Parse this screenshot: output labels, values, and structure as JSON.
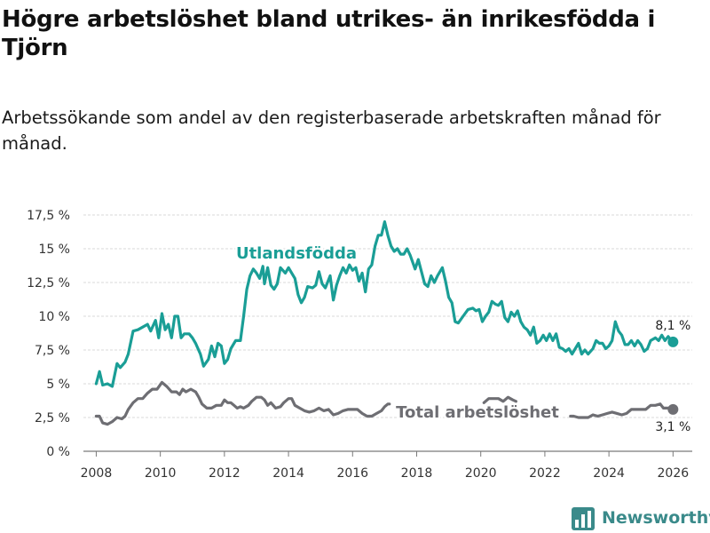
{
  "title": "Högre arbetslöshet bland utrikes- än inrikesfödda i Tjörn",
  "subtitle": "Arbetssökande som andel av den registerbaserade arbetskraften månad för månad.",
  "brand": "Newsworthy",
  "chart_data": {
    "type": "line",
    "title": "Högre arbetslöshet bland utrikes- än inrikesfödda i Tjörn",
    "xlabel": "",
    "ylabel": "",
    "xlim": [
      2007.6,
      2026.6
    ],
    "ylim": [
      0,
      17.5
    ],
    "y_ticks": [
      0,
      2.5,
      5,
      7.5,
      10,
      12.5,
      15,
      17.5
    ],
    "y_tick_labels": [
      "0 %",
      "2,5 %",
      "5 %",
      "7,5 %",
      "10 %",
      "12,5 %",
      "15 %",
      "17,5 %"
    ],
    "x_ticks": [
      2008,
      2010,
      2012,
      2014,
      2016,
      2018,
      2020,
      2022,
      2024,
      2026
    ],
    "x_tick_labels": [
      "2008",
      "2010",
      "2012",
      "2014",
      "2016",
      "2018",
      "2020",
      "2022",
      "2024",
      "2026"
    ],
    "grid": "horizontal",
    "series": [
      {
        "name": "Utlandsfödda",
        "label": "Utlandsfödda",
        "color": "#1a9e96",
        "end_label": "8,1 %",
        "points": [
          [
            2008.0,
            5.0
          ],
          [
            2008.1,
            5.9
          ],
          [
            2008.2,
            4.9
          ],
          [
            2008.35,
            5.0
          ],
          [
            2008.5,
            4.8
          ],
          [
            2008.65,
            6.5
          ],
          [
            2008.75,
            6.2
          ],
          [
            2008.9,
            6.6
          ],
          [
            2009.0,
            7.2
          ],
          [
            2009.15,
            8.9
          ],
          [
            2009.3,
            9.0
          ],
          [
            2009.45,
            9.2
          ],
          [
            2009.6,
            9.4
          ],
          [
            2009.7,
            8.9
          ],
          [
            2009.85,
            9.7
          ],
          [
            2009.95,
            8.4
          ],
          [
            2010.05,
            10.2
          ],
          [
            2010.15,
            9.0
          ],
          [
            2010.25,
            9.4
          ],
          [
            2010.35,
            8.4
          ],
          [
            2010.45,
            10.0
          ],
          [
            2010.55,
            10.0
          ],
          [
            2010.65,
            8.4
          ],
          [
            2010.75,
            8.7
          ],
          [
            2010.9,
            8.7
          ],
          [
            2011.0,
            8.4
          ],
          [
            2011.1,
            8.0
          ],
          [
            2011.25,
            7.2
          ],
          [
            2011.35,
            6.3
          ],
          [
            2011.5,
            6.8
          ],
          [
            2011.6,
            7.8
          ],
          [
            2011.7,
            7.0
          ],
          [
            2011.8,
            8.0
          ],
          [
            2011.9,
            7.8
          ],
          [
            2012.0,
            6.5
          ],
          [
            2012.1,
            6.8
          ],
          [
            2012.2,
            7.6
          ],
          [
            2012.35,
            8.2
          ],
          [
            2012.5,
            8.2
          ],
          [
            2012.6,
            10.0
          ],
          [
            2012.7,
            12.0
          ],
          [
            2012.8,
            13.0
          ],
          [
            2012.9,
            13.5
          ],
          [
            2013.0,
            13.2
          ],
          [
            2013.1,
            12.8
          ],
          [
            2013.2,
            13.7
          ],
          [
            2013.25,
            12.4
          ],
          [
            2013.35,
            13.6
          ],
          [
            2013.45,
            12.3
          ],
          [
            2013.55,
            12.0
          ],
          [
            2013.65,
            12.4
          ],
          [
            2013.75,
            13.6
          ],
          [
            2013.9,
            13.2
          ],
          [
            2014.0,
            13.6
          ],
          [
            2014.1,
            13.2
          ],
          [
            2014.2,
            12.8
          ],
          [
            2014.3,
            11.6
          ],
          [
            2014.4,
            11.0
          ],
          [
            2014.5,
            11.4
          ],
          [
            2014.6,
            12.2
          ],
          [
            2014.75,
            12.1
          ],
          [
            2014.85,
            12.3
          ],
          [
            2014.95,
            13.3
          ],
          [
            2015.05,
            12.4
          ],
          [
            2015.15,
            12.1
          ],
          [
            2015.3,
            13.0
          ],
          [
            2015.4,
            11.2
          ],
          [
            2015.5,
            12.3
          ],
          [
            2015.6,
            13.0
          ],
          [
            2015.7,
            13.6
          ],
          [
            2015.8,
            13.2
          ],
          [
            2015.9,
            13.8
          ],
          [
            2016.0,
            13.4
          ],
          [
            2016.1,
            13.6
          ],
          [
            2016.2,
            12.6
          ],
          [
            2016.3,
            13.2
          ],
          [
            2016.4,
            11.8
          ],
          [
            2016.5,
            13.5
          ],
          [
            2016.6,
            13.8
          ],
          [
            2016.7,
            15.2
          ],
          [
            2016.8,
            16.0
          ],
          [
            2016.9,
            16.0
          ],
          [
            2017.0,
            17.0
          ],
          [
            2017.1,
            16.0
          ],
          [
            2017.2,
            15.2
          ],
          [
            2017.3,
            14.8
          ],
          [
            2017.4,
            15.0
          ],
          [
            2017.5,
            14.6
          ],
          [
            2017.6,
            14.6
          ],
          [
            2017.7,
            15.0
          ],
          [
            2017.8,
            14.5
          ],
          [
            2017.95,
            13.5
          ],
          [
            2018.05,
            14.2
          ],
          [
            2018.15,
            13.3
          ],
          [
            2018.25,
            12.4
          ],
          [
            2018.35,
            12.2
          ],
          [
            2018.45,
            13.0
          ],
          [
            2018.55,
            12.5
          ],
          [
            2018.65,
            13.0
          ],
          [
            2018.8,
            13.6
          ],
          [
            2018.9,
            12.6
          ],
          [
            2019.0,
            11.4
          ],
          [
            2019.1,
            11.0
          ],
          [
            2019.2,
            9.6
          ],
          [
            2019.3,
            9.5
          ],
          [
            2019.45,
            10.0
          ],
          [
            2019.6,
            10.5
          ],
          [
            2019.75,
            10.6
          ],
          [
            2019.85,
            10.4
          ],
          [
            2019.95,
            10.5
          ],
          [
            2020.05,
            9.6
          ],
          [
            2020.15,
            10.0
          ],
          [
            2020.25,
            10.3
          ],
          [
            2020.35,
            11.1
          ],
          [
            2020.45,
            10.9
          ],
          [
            2020.55,
            10.8
          ],
          [
            2020.65,
            11.1
          ],
          [
            2020.75,
            9.9
          ],
          [
            2020.85,
            9.6
          ],
          [
            2020.95,
            10.3
          ],
          [
            2021.05,
            10.0
          ],
          [
            2021.15,
            10.4
          ],
          [
            2021.25,
            9.6
          ],
          [
            2021.35,
            9.2
          ],
          [
            2021.45,
            9.0
          ],
          [
            2021.55,
            8.6
          ],
          [
            2021.65,
            9.2
          ],
          [
            2021.75,
            8.0
          ],
          [
            2021.85,
            8.2
          ],
          [
            2021.95,
            8.6
          ],
          [
            2022.05,
            8.2
          ],
          [
            2022.15,
            8.7
          ],
          [
            2022.25,
            8.2
          ],
          [
            2022.35,
            8.7
          ],
          [
            2022.45,
            7.7
          ],
          [
            2022.55,
            7.6
          ],
          [
            2022.65,
            7.4
          ],
          [
            2022.75,
            7.6
          ],
          [
            2022.85,
            7.2
          ],
          [
            2022.95,
            7.6
          ],
          [
            2023.05,
            8.0
          ],
          [
            2023.15,
            7.2
          ],
          [
            2023.25,
            7.5
          ],
          [
            2023.35,
            7.2
          ],
          [
            2023.5,
            7.6
          ],
          [
            2023.6,
            8.2
          ],
          [
            2023.7,
            8.0
          ],
          [
            2023.8,
            8.0
          ],
          [
            2023.9,
            7.6
          ],
          [
            2024.0,
            7.8
          ],
          [
            2024.1,
            8.2
          ],
          [
            2024.2,
            9.6
          ],
          [
            2024.3,
            8.9
          ],
          [
            2024.4,
            8.6
          ],
          [
            2024.5,
            7.9
          ],
          [
            2024.6,
            7.9
          ],
          [
            2024.7,
            8.2
          ],
          [
            2024.8,
            7.8
          ],
          [
            2024.9,
            8.2
          ],
          [
            2025.0,
            7.9
          ],
          [
            2025.1,
            7.4
          ],
          [
            2025.2,
            7.6
          ],
          [
            2025.3,
            8.2
          ],
          [
            2025.45,
            8.4
          ],
          [
            2025.55,
            8.2
          ],
          [
            2025.65,
            8.6
          ],
          [
            2025.75,
            8.2
          ],
          [
            2025.85,
            8.5
          ],
          [
            2025.95,
            8.2
          ],
          [
            2026.0,
            8.1
          ]
        ]
      },
      {
        "name": "Total arbetslöshet",
        "label": "Total arbetslöshet",
        "color": "#6e6e73",
        "end_label": "3,1 %",
        "points": [
          [
            2008.0,
            2.6
          ],
          [
            2008.1,
            2.6
          ],
          [
            2008.2,
            2.1
          ],
          [
            2008.35,
            2.0
          ],
          [
            2008.5,
            2.2
          ],
          [
            2008.65,
            2.5
          ],
          [
            2008.8,
            2.4
          ],
          [
            2008.9,
            2.6
          ],
          [
            2009.0,
            3.1
          ],
          [
            2009.15,
            3.6
          ],
          [
            2009.3,
            3.9
          ],
          [
            2009.45,
            3.9
          ],
          [
            2009.6,
            4.3
          ],
          [
            2009.75,
            4.6
          ],
          [
            2009.9,
            4.6
          ],
          [
            2010.05,
            5.1
          ],
          [
            2010.2,
            4.8
          ],
          [
            2010.35,
            4.4
          ],
          [
            2010.5,
            4.4
          ],
          [
            2010.6,
            4.2
          ],
          [
            2010.7,
            4.6
          ],
          [
            2010.8,
            4.4
          ],
          [
            2010.95,
            4.6
          ],
          [
            2011.1,
            4.4
          ],
          [
            2011.2,
            4.0
          ],
          [
            2011.3,
            3.5
          ],
          [
            2011.45,
            3.2
          ],
          [
            2011.6,
            3.2
          ],
          [
            2011.75,
            3.4
          ],
          [
            2011.9,
            3.4
          ],
          [
            2012.0,
            3.8
          ],
          [
            2012.1,
            3.6
          ],
          [
            2012.2,
            3.6
          ],
          [
            2012.3,
            3.4
          ],
          [
            2012.4,
            3.2
          ],
          [
            2012.5,
            3.3
          ],
          [
            2012.6,
            3.2
          ],
          [
            2012.75,
            3.4
          ],
          [
            2012.85,
            3.7
          ],
          [
            2013.0,
            4.0
          ],
          [
            2013.15,
            4.0
          ],
          [
            2013.25,
            3.8
          ],
          [
            2013.35,
            3.4
          ],
          [
            2013.45,
            3.6
          ],
          [
            2013.6,
            3.2
          ],
          [
            2013.75,
            3.3
          ],
          [
            2013.85,
            3.6
          ],
          [
            2014.0,
            3.9
          ],
          [
            2014.1,
            3.9
          ],
          [
            2014.2,
            3.4
          ],
          [
            2014.35,
            3.2
          ],
          [
            2014.5,
            3.0
          ],
          [
            2014.65,
            2.9
          ],
          [
            2014.8,
            3.0
          ],
          [
            2014.95,
            3.2
          ],
          [
            2015.1,
            3.0
          ],
          [
            2015.25,
            3.1
          ],
          [
            2015.4,
            2.7
          ],
          [
            2015.55,
            2.8
          ],
          [
            2015.7,
            3.0
          ],
          [
            2015.85,
            3.1
          ],
          [
            2016.0,
            3.1
          ],
          [
            2016.15,
            3.1
          ],
          [
            2016.3,
            2.8
          ],
          [
            2016.45,
            2.6
          ],
          [
            2016.6,
            2.6
          ],
          [
            2016.75,
            2.8
          ],
          [
            2016.9,
            3.0
          ],
          [
            2017.0,
            3.3
          ],
          [
            2017.1,
            3.5
          ],
          [
            2017.15,
            3.5
          ]
        ],
        "points_2": [
          [
            2020.1,
            3.6
          ],
          [
            2020.25,
            3.9
          ],
          [
            2020.4,
            3.9
          ],
          [
            2020.55,
            3.9
          ],
          [
            2020.7,
            3.7
          ],
          [
            2020.85,
            4.0
          ],
          [
            2021.0,
            3.8
          ],
          [
            2021.1,
            3.7
          ]
        ],
        "points_3": [
          [
            2022.8,
            2.6
          ],
          [
            2022.9,
            2.6
          ],
          [
            2023.05,
            2.5
          ],
          [
            2023.2,
            2.5
          ],
          [
            2023.35,
            2.5
          ],
          [
            2023.5,
            2.7
          ],
          [
            2023.65,
            2.6
          ],
          [
            2023.8,
            2.7
          ],
          [
            2023.95,
            2.8
          ],
          [
            2024.1,
            2.9
          ],
          [
            2024.25,
            2.8
          ],
          [
            2024.4,
            2.7
          ],
          [
            2024.55,
            2.8
          ],
          [
            2024.7,
            3.1
          ],
          [
            2024.85,
            3.1
          ],
          [
            2025.0,
            3.1
          ],
          [
            2025.15,
            3.1
          ],
          [
            2025.3,
            3.4
          ],
          [
            2025.45,
            3.4
          ],
          [
            2025.6,
            3.5
          ],
          [
            2025.7,
            3.2
          ],
          [
            2025.85,
            3.2
          ],
          [
            2026.0,
            3.1
          ]
        ]
      }
    ]
  }
}
